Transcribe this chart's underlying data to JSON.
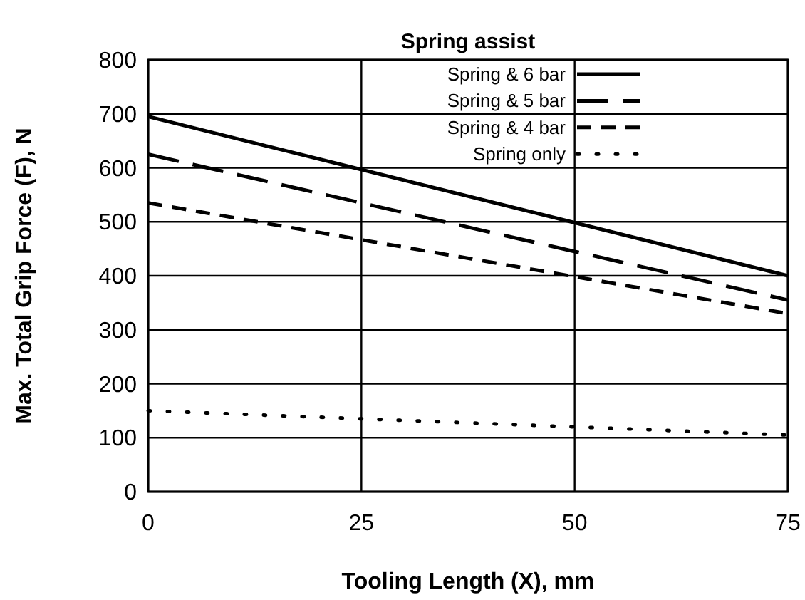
{
  "chart_data": {
    "type": "line",
    "title": "Spring assist",
    "xlabel": "Tooling Length (X), mm",
    "ylabel": "Max. Total Grip Force (F), N",
    "x": [
      0,
      75
    ],
    "xlim": [
      0,
      75
    ],
    "xticks": [
      0,
      25,
      50,
      75
    ],
    "ylim": [
      0,
      800
    ],
    "yticks": [
      0,
      100,
      200,
      300,
      400,
      500,
      600,
      700,
      800
    ],
    "grid": true,
    "legend": "top right",
    "marker": "none",
    "series": [
      {
        "name": "Spring & 6 bar",
        "color": "#000000",
        "line_style": "solid",
        "values": [
          695,
          400
        ]
      },
      {
        "name": "Spring & 5 bar",
        "color": "#000000",
        "line_style": "dashed",
        "values": [
          625,
          355
        ]
      },
      {
        "name": "Spring & 4 bar",
        "color": "#000000",
        "line_style": "dashed",
        "values": [
          535,
          330
        ]
      },
      {
        "name": "Spring only",
        "color": "#000000",
        "line_style": "dotted",
        "values": [
          150,
          105
        ]
      }
    ]
  }
}
